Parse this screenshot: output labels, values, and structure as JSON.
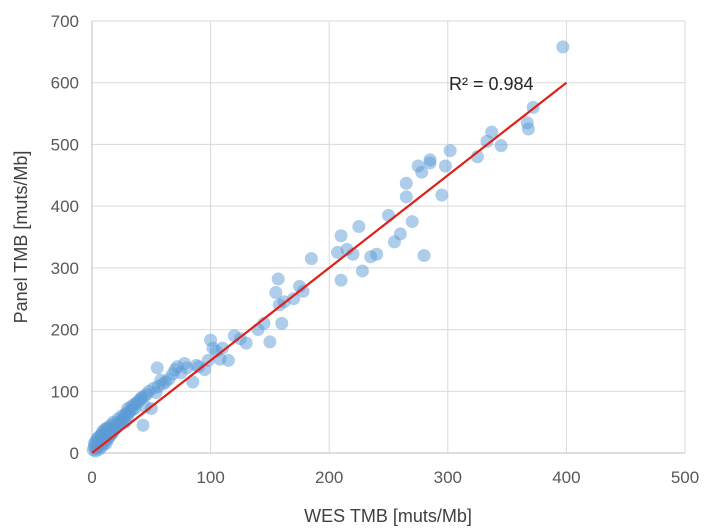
{
  "chart_data": {
    "type": "scatter",
    "title": "",
    "xlabel": "WES TMB [muts/Mb]",
    "ylabel": "Panel TMB [muts/Mb]",
    "xlim": [
      0,
      500
    ],
    "ylim": [
      0,
      700
    ],
    "xticks": [
      0,
      100,
      200,
      300,
      400,
      500
    ],
    "yticks": [
      0,
      100,
      200,
      300,
      400,
      500,
      600,
      700
    ],
    "grid": true,
    "legend": "none",
    "annotation": "R² = 0.984",
    "colors": {
      "points": "#5b9bd5",
      "trendline": "#e0201b",
      "grid": "#d9d9d9",
      "axis": "#bfbfbf"
    },
    "series": [
      {
        "x": [
          1,
          2,
          2,
          3,
          3,
          4,
          4,
          5,
          5,
          6,
          6,
          7,
          7,
          8,
          8,
          9,
          9,
          10,
          10,
          11,
          11,
          12,
          12,
          13,
          13,
          14,
          14,
          15,
          15,
          16,
          16,
          17,
          18,
          18,
          19,
          20,
          20,
          21,
          22,
          22,
          23,
          24,
          25,
          25,
          26,
          27,
          28,
          28,
          29,
          30,
          30,
          31,
          32,
          33,
          34,
          35,
          36,
          37,
          38,
          40,
          41,
          42,
          43,
          44,
          45,
          46,
          48,
          50,
          52,
          54,
          55,
          56,
          58,
          60,
          62,
          65,
          68,
          70,
          72,
          75,
          78,
          80,
          85,
          88,
          90,
          95,
          98,
          100,
          102,
          105,
          108,
          110,
          115,
          120,
          125,
          130,
          140,
          145,
          150,
          155,
          157,
          158,
          160,
          162,
          170,
          175,
          178,
          185,
          207,
          210,
          210,
          215,
          220,
          225,
          228,
          235,
          240,
          250,
          255,
          260,
          265,
          265,
          270,
          275,
          278,
          280,
          285,
          285,
          295,
          298,
          302,
          325,
          333,
          337,
          345,
          367,
          368,
          372,
          397
        ],
        "y": [
          5,
          10,
          15,
          3,
          18,
          8,
          22,
          12,
          25,
          6,
          20,
          15,
          28,
          10,
          30,
          18,
          35,
          14,
          32,
          20,
          38,
          16,
          40,
          22,
          35,
          25,
          42,
          28,
          38,
          30,
          45,
          32,
          35,
          50,
          38,
          40,
          48,
          42,
          45,
          55,
          48,
          50,
          52,
          60,
          55,
          58,
          62,
          50,
          65,
          60,
          72,
          65,
          68,
          75,
          70,
          78,
          72,
          80,
          82,
          85,
          88,
          90,
          45,
          92,
          75,
          95,
          100,
          72,
          105,
          98,
          138,
          108,
          118,
          112,
          115,
          120,
          128,
          135,
          140,
          130,
          145,
          138,
          115,
          142,
          140,
          135,
          150,
          183,
          170,
          165,
          152,
          170,
          150,
          190,
          185,
          178,
          200,
          210,
          180,
          260,
          282,
          240,
          210,
          245,
          250,
          270,
          262,
          315,
          325,
          352,
          280,
          330,
          322,
          367,
          295,
          318,
          322,
          385,
          342,
          355,
          415,
          437,
          375,
          465,
          455,
          320,
          470,
          475,
          418,
          465,
          490,
          480,
          505,
          520,
          498,
          535,
          525,
          560,
          658
        ]
      }
    ],
    "trendline": {
      "x": [
        0,
        400
      ],
      "y": [
        0,
        600
      ],
      "label": "R² = 0.984"
    }
  }
}
